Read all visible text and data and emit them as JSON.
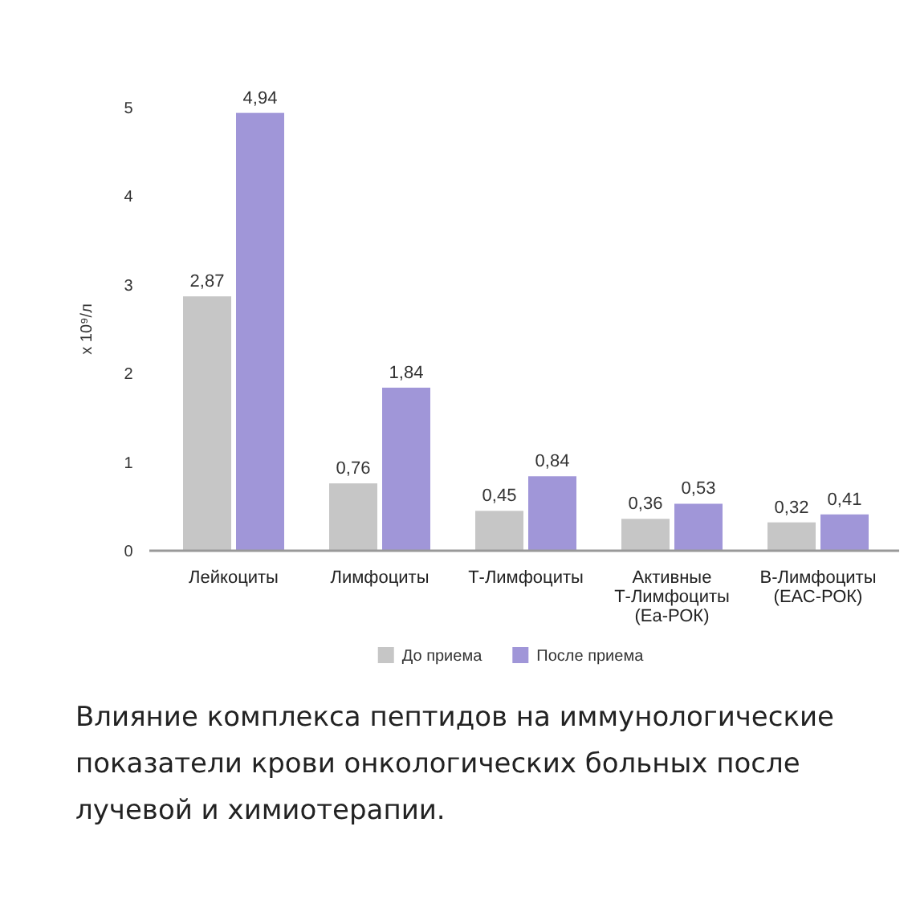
{
  "chart_data": {
    "type": "bar",
    "title": "Влияние комплекса пептидов на иммунологические показатели крови онкологических больных после лучевой и химиотерапии.",
    "ylabel": "x 10⁹/л",
    "categories": [
      "Лейкоциты",
      "Лимфоциты",
      "Т-Лимфоциты",
      "Активные Т-Лимфоциты (Еа-РОК)",
      "В-Лимфоциты (ЕАС-РОК)"
    ],
    "series": [
      {
        "name": "До приема",
        "color": "#c6c6c6",
        "values": [
          2.87,
          0.76,
          0.45,
          0.36,
          0.32
        ],
        "value_labels": [
          "2,87",
          "0,76",
          "0,45",
          "0,36",
          "0,32"
        ]
      },
      {
        "name": "После приема",
        "color": "#a096d8",
        "values": [
          4.94,
          1.84,
          0.84,
          0.53,
          0.41
        ],
        "value_labels": [
          "4,94",
          "1,84",
          "0,84",
          "0,53",
          "0,41"
        ]
      }
    ],
    "ylim": [
      0,
      5
    ],
    "yticks": [
      0,
      1,
      2,
      3,
      4,
      5
    ],
    "legend": "bottom"
  }
}
